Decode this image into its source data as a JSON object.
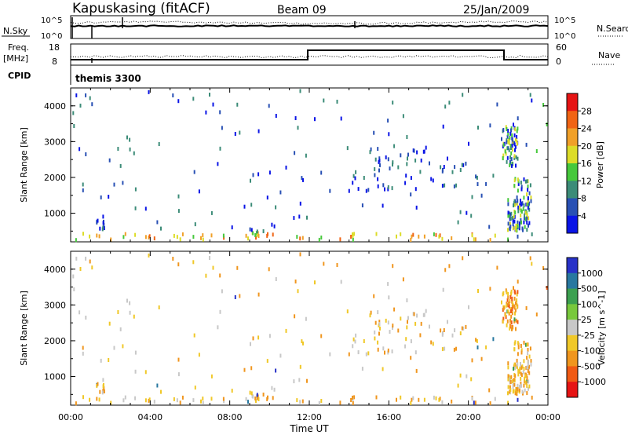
{
  "header": {
    "title": "Kapuskasing (fitACF)",
    "beam": "Beam 09",
    "date": "25/Jan/2009"
  },
  "top_panels": {
    "nsky_label": "N.Sky",
    "nsky_ticks": [
      "10^5",
      "10^0"
    ],
    "nsearch_label": "N.Search",
    "nsearch_ticks": [
      "10^5",
      "10^0"
    ],
    "freq_label": "Freq.",
    "freq_unit": "[MHz]",
    "freq_ticks": [
      "18",
      "8"
    ],
    "nave_label": "Nave",
    "nave_ticks": [
      "60",
      "0"
    ],
    "cpid_label": "CPID",
    "cpid_value": "themis 3300"
  },
  "chart_data": [
    {
      "type": "scatter",
      "name": "power",
      "ylabel": "Slant Range [km]",
      "yticks": [
        "1000",
        "2000",
        "3000",
        "4000"
      ],
      "ylim": [
        200,
        4500
      ],
      "xlim": [
        0,
        24
      ],
      "colorbar": {
        "label": "Power [dB]",
        "ticks": [
          "4",
          "8",
          "12",
          "16",
          "20",
          "24",
          "28"
        ],
        "colors": [
          "#0a14e6",
          "#2850b4",
          "#3c8c78",
          "#46c83c",
          "#dcdc28",
          "#f0a028",
          "#f06414",
          "#e61414"
        ]
      }
    },
    {
      "type": "scatter",
      "name": "velocity",
      "ylabel": "Slant Range [km]",
      "yticks": [
        "1000",
        "2000",
        "3000",
        "4000"
      ],
      "ylim": [
        200,
        4500
      ],
      "xlim": [
        0,
        24
      ],
      "colorbar": {
        "label": "Velocity [m s^-1]",
        "ticks": [
          "1000",
          "500",
          "100",
          "25",
          "-25",
          "-100",
          "-500",
          "-1000"
        ],
        "colors": [
          "#2832c8",
          "#2878a0",
          "#3ca050",
          "#78c83c",
          "#c8c8c8",
          "#f0c828",
          "#f0961e",
          "#f05a14",
          "#e61414"
        ]
      }
    }
  ],
  "xaxis": {
    "label": "Time UT",
    "ticks": [
      "00:00",
      "04:00",
      "08:00",
      "12:00",
      "16:00",
      "20:00",
      "00:00"
    ]
  }
}
